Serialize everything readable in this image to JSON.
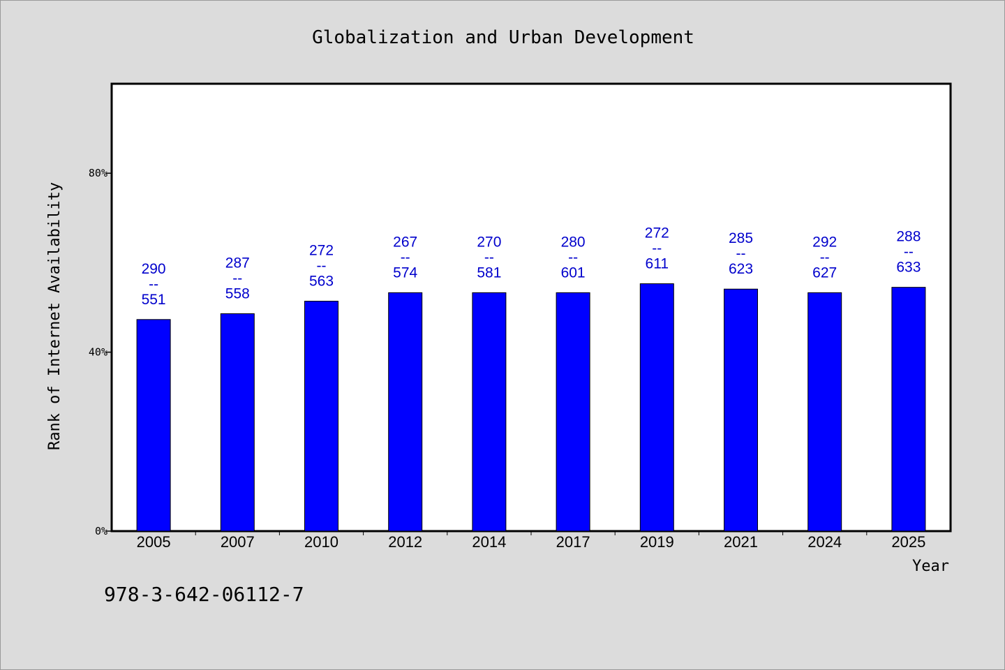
{
  "chart_data": {
    "type": "bar",
    "title": "Globalization and Urban Development",
    "xlabel": "Year",
    "ylabel": "Rank of Internet Availability",
    "ylim": [
      0,
      1
    ],
    "yticks": [
      {
        "value": 0,
        "label": "0%"
      },
      {
        "value": 0.4,
        "label": "40%"
      },
      {
        "value": 0.8,
        "label": "80%"
      }
    ],
    "grid": false,
    "categories": [
      "2005",
      "2007",
      "2010",
      "2012",
      "2014",
      "2017",
      "2019",
      "2021",
      "2024",
      "2025"
    ],
    "values": [
      0.473,
      0.486,
      0.514,
      0.533,
      0.533,
      0.533,
      0.553,
      0.541,
      0.533,
      0.545
    ],
    "bar_labels": [
      [
        "290",
        "--",
        "551"
      ],
      [
        "287",
        "--",
        "558"
      ],
      [
        "272",
        "--",
        "563"
      ],
      [
        "267",
        "--",
        "574"
      ],
      [
        "270",
        "--",
        "581"
      ],
      [
        "280",
        "--",
        "601"
      ],
      [
        "272",
        "--",
        "611"
      ],
      [
        "285",
        "--",
        "623"
      ],
      [
        "292",
        "--",
        "627"
      ],
      [
        "288",
        "--",
        "633"
      ]
    ],
    "bar_color": "#0000ff",
    "label_color": "#0000cc"
  },
  "footnote": "978-3-642-06112-7"
}
